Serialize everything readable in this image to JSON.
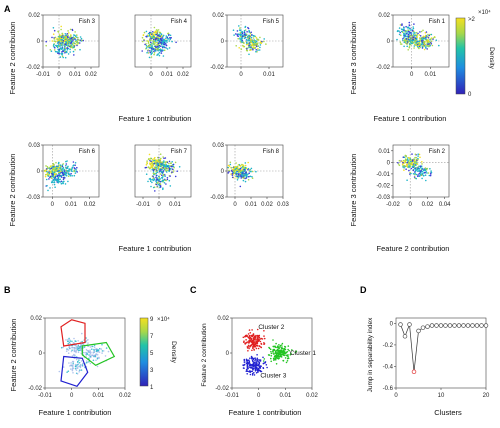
{
  "panels": {
    "A": "A",
    "B": "B",
    "C": "C",
    "D": "D"
  },
  "axis_labels": {
    "feature1": "Feature 1 contribution",
    "feature2_contrib": "Feature 2 contribution",
    "feature3_contrib": "Feature 3 contribution",
    "feature2_x": "Feature 2 contribution",
    "jump_y": "Jump in separability index",
    "clusters": "Clusters"
  },
  "colorbar_A": {
    "label": "Density",
    "top_tick": ">2",
    "exp": "×10⁴",
    "bottom_tick": "0"
  },
  "colorbar_B": {
    "label": "Density",
    "ticks": [
      "9",
      "7",
      "5",
      "3",
      "1"
    ],
    "exp": "×10⁴"
  },
  "colors": {
    "density_low": "#3b3bd8",
    "density_mid": "#1fb5c9",
    "density_high": "#f5e020",
    "cluster1": "#22c422",
    "cluster2": "#e02020",
    "cluster3": "#2020d0",
    "highlight_point": "#e03030"
  },
  "chart_data": [
    {
      "type": "scatter",
      "title": "Fish 3",
      "xlim": [
        -0.01,
        0.025
      ],
      "ylim": [
        -0.02,
        0.02
      ],
      "xticks": [
        "-0.01",
        "0",
        "0.01",
        "0.02"
      ],
      "yticks": [
        "0.02",
        "0",
        "-0.02"
      ],
      "ylabel": "Feature 2 contribution",
      "blobs": [
        {
          "x": 0.003,
          "y": 0.002,
          "d": 1.0
        },
        {
          "x": 0.008,
          "y": 0.0,
          "d": 0.7
        },
        {
          "x": 0.002,
          "y": -0.006,
          "d": 0.6
        }
      ]
    },
    {
      "type": "scatter",
      "title": "Fish 4",
      "xlim": [
        -0.01,
        0.025
      ],
      "ylim": [
        -0.02,
        0.02
      ],
      "xticks": [
        "0",
        "0.01",
        "0.02"
      ],
      "yticks": [],
      "blobs": [
        {
          "x": 0.002,
          "y": 0.003,
          "d": 1.0
        },
        {
          "x": 0.003,
          "y": -0.006,
          "d": 0.7
        },
        {
          "x": 0.008,
          "y": 0.0,
          "d": 0.5
        }
      ]
    },
    {
      "type": "scatter",
      "title": "Fish 5",
      "xlim": [
        -0.005,
        0.015
      ],
      "ylim": [
        -0.02,
        0.02
      ],
      "xticks": [
        "0",
        "0.01"
      ],
      "yticks": [
        "0.02",
        "0",
        "-0.02"
      ],
      "blobs": [
        {
          "x": 0.004,
          "y": -0.002,
          "d": 1.0
        },
        {
          "x": 0.001,
          "y": 0.005,
          "d": 0.6
        }
      ]
    },
    {
      "type": "scatter",
      "title": "Fish 1",
      "xlim": [
        -0.01,
        0.02
      ],
      "ylim": [
        -0.02,
        0.02
      ],
      "xticks": [
        "0",
        "0.01"
      ],
      "yticks": [
        "0.02",
        "0",
        "-0.02"
      ],
      "xlabel": "Feature 1 contribution",
      "ylabel": "Feature 3 contribution",
      "blobs": [
        {
          "x": 0.0,
          "y": 0.0,
          "d": 0.8
        },
        {
          "x": 0.007,
          "y": 0.0,
          "d": 1.0
        },
        {
          "x": -0.002,
          "y": 0.007,
          "d": 0.6
        }
      ]
    },
    {
      "type": "scatter",
      "title": "Fish 6",
      "xlim": [
        -0.005,
        0.025
      ],
      "ylim": [
        -0.03,
        0.03
      ],
      "xticks": [
        "0",
        "0.01",
        "0.02"
      ],
      "yticks": [
        "0.03",
        "0",
        "-0.03"
      ],
      "ylabel": "Feature 2 contribution",
      "blobs": [
        {
          "x": 0.001,
          "y": 0.0,
          "d": 1.0
        },
        {
          "x": 0.008,
          "y": 0.0,
          "d": 0.6
        },
        {
          "x": 0.002,
          "y": -0.01,
          "d": 0.5
        }
      ]
    },
    {
      "type": "scatter",
      "title": "Fish 7",
      "xlim": [
        -0.015,
        0.02
      ],
      "ylim": [
        -0.03,
        0.03
      ],
      "xticks": [
        "-0.01",
        "0",
        "0.01"
      ],
      "yticks": [],
      "xlabel": "Feature 1 contribution",
      "blobs": [
        {
          "x": -0.002,
          "y": 0.008,
          "d": 1.0
        },
        {
          "x": 0.004,
          "y": 0.003,
          "d": 0.7
        },
        {
          "x": 0.0,
          "y": -0.011,
          "d": 0.6
        }
      ]
    },
    {
      "type": "scatter",
      "title": "Fish 8",
      "xlim": [
        -0.005,
        0.03
      ],
      "ylim": [
        -0.03,
        0.03
      ],
      "xticks": [
        "0",
        "0.01",
        "0.02",
        "0.03"
      ],
      "yticks": [
        "0.03",
        "0",
        "-0.03"
      ],
      "blobs": [
        {
          "x": 0.002,
          "y": 0.0,
          "d": 1.0
        },
        {
          "x": 0.006,
          "y": -0.003,
          "d": 0.6
        }
      ]
    },
    {
      "type": "scatter",
      "title": "Fish 2",
      "xlim": [
        -0.02,
        0.045
      ],
      "ylim": [
        -0.03,
        0.015
      ],
      "xticks": [
        "-0.02",
        "0",
        "0.02",
        "0.04"
      ],
      "yticks": [
        "0.01",
        "0",
        "-0.01",
        "-0.02",
        "-0.03"
      ],
      "xlabel": "Feature 2 contribution",
      "ylabel": "Feature 3 contribution",
      "blobs": [
        {
          "x": 0.0,
          "y": 0.0,
          "d": 1.0
        },
        {
          "x": 0.012,
          "y": -0.008,
          "d": 0.6
        }
      ]
    },
    {
      "type": "scatter",
      "title": "",
      "xlim": [
        -0.01,
        0.02
      ],
      "ylim": [
        -0.02,
        0.02
      ],
      "xticks": [
        "-0.01",
        "0",
        "0.01",
        "0.02"
      ],
      "yticks": [
        "0.02",
        "0",
        "-0.02"
      ],
      "xlabel": "Feature 1 contribution",
      "ylabel": "Feature 2 contribution",
      "blobs": [
        {
          "x": 0.002,
          "y": 0.004,
          "d": 1.0
        },
        {
          "x": 0.008,
          "y": 0.0,
          "d": 0.7
        },
        {
          "x": 0.002,
          "y": -0.007,
          "d": 0.6
        }
      ]
    },
    {
      "type": "scatter",
      "title": "",
      "xlim": [
        -0.01,
        0.02
      ],
      "ylim": [
        -0.02,
        0.02
      ],
      "xticks": [
        "-0.01",
        "0",
        "0.01",
        "0.02"
      ],
      "yticks": [
        "0.02",
        "0",
        "-0.02"
      ],
      "xlabel": "Feature 1 contribution",
      "ylabel": "Feature 2 contribution",
      "clusters": [
        {
          "name": "Cluster 1",
          "x": 0.008,
          "y": 0.0
        },
        {
          "name": "Cluster 2",
          "x": -0.002,
          "y": 0.007
        },
        {
          "name": "Cluster 3",
          "x": -0.002,
          "y": -0.007
        }
      ]
    },
    {
      "type": "line",
      "title": "",
      "xlabel": "Clusters",
      "ylabel": "Jump in separability index",
      "xlim": [
        0,
        20
      ],
      "ylim": [
        -0.6,
        0.05
      ],
      "xticks": [
        "0",
        "10",
        "20"
      ],
      "yticks": [
        "0",
        "-0.2",
        "-0.4",
        "-0.6"
      ],
      "x": [
        1,
        2,
        3,
        4,
        5,
        6,
        7,
        8,
        9,
        10,
        11,
        12,
        13,
        14,
        15,
        16,
        17,
        18,
        19,
        20
      ],
      "y": [
        -0.01,
        -0.12,
        -0.01,
        -0.45,
        -0.07,
        -0.04,
        -0.03,
        -0.02,
        -0.02,
        -0.02,
        -0.02,
        -0.02,
        -0.02,
        -0.02,
        -0.02,
        -0.02,
        -0.02,
        -0.02,
        -0.02,
        -0.02
      ],
      "highlight_index": 3
    }
  ]
}
